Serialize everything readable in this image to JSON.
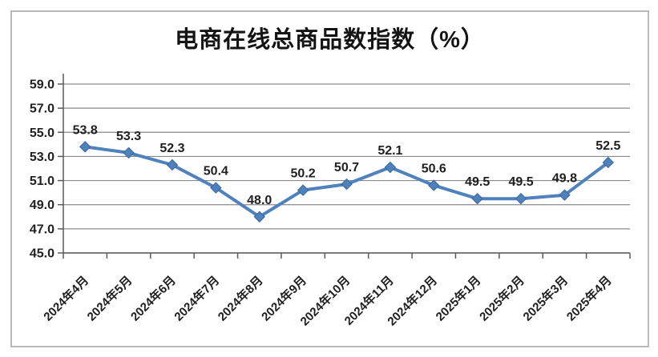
{
  "chart_data": {
    "type": "line",
    "title": "电商在线总商品数指数（%）",
    "categories": [
      "2024年4月",
      "2024年5月",
      "2024年6月",
      "2024年7月",
      "2024年8月",
      "2024年9月",
      "2024年10月",
      "2024年11月",
      "2024年12月",
      "2025年1月",
      "2025年2月",
      "2025年3月",
      "2025年4月"
    ],
    "values": [
      53.8,
      53.3,
      52.3,
      50.4,
      48.0,
      50.2,
      50.7,
      52.1,
      50.6,
      49.5,
      49.5,
      49.8,
      52.5
    ],
    "value_labels": [
      "53.8",
      "53.3",
      "52.3",
      "50.4",
      "48.0",
      "50.2",
      "50.7",
      "52.1",
      "50.6",
      "49.5",
      "49.5",
      "49.8",
      "52.5"
    ],
    "y_ticks": [
      59.0,
      57.0,
      55.0,
      53.0,
      51.0,
      49.0,
      47.0,
      45.0
    ],
    "y_tick_labels": [
      "59.0",
      "57.0",
      "55.0",
      "53.0",
      "51.0",
      "49.0",
      "47.0",
      "45.0"
    ],
    "ylim": [
      45.0,
      59.0
    ],
    "y_step": 2.0,
    "xlabel": "",
    "ylabel": "",
    "grid": true,
    "legend_position": "none",
    "marker": "diamond",
    "line_color": "#4f81bd",
    "marker_edge_color": "#3a679c",
    "grid_color": "#8a8a8a",
    "axis_color": "#5a5a5a",
    "text_color": "#1f1f1f",
    "frame_border_color": "#b9b9b9",
    "background_color": "#ffffff"
  }
}
